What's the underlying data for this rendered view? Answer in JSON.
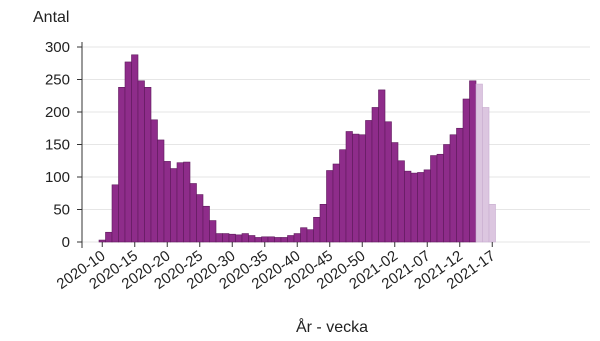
{
  "chart_data": {
    "type": "bar",
    "ylabel": "Antal",
    "xlabel": "År - vecka",
    "ylim": [
      0,
      300
    ],
    "yticks": [
      0,
      50,
      100,
      150,
      200,
      250,
      300
    ],
    "grid": "horizontal",
    "x_tick_labels": [
      "2020-10",
      "2020-15",
      "2020-20",
      "2020-25",
      "2020-30",
      "2020-35",
      "2020-40",
      "2020-45",
      "2020-50",
      "2021-02",
      "2021-07",
      "2021-12",
      "2021-17"
    ],
    "categories": [
      "2020-10",
      "2020-11",
      "2020-12",
      "2020-13",
      "2020-14",
      "2020-15",
      "2020-16",
      "2020-17",
      "2020-18",
      "2020-19",
      "2020-20",
      "2020-21",
      "2020-22",
      "2020-23",
      "2020-24",
      "2020-25",
      "2020-26",
      "2020-27",
      "2020-28",
      "2020-29",
      "2020-30",
      "2020-31",
      "2020-32",
      "2020-33",
      "2020-34",
      "2020-35",
      "2020-36",
      "2020-37",
      "2020-38",
      "2020-39",
      "2020-40",
      "2020-41",
      "2020-42",
      "2020-43",
      "2020-44",
      "2020-45",
      "2020-46",
      "2020-47",
      "2020-48",
      "2020-49",
      "2020-50",
      "2020-51",
      "2020-52",
      "2020-53",
      "2021-01",
      "2021-02",
      "2021-03",
      "2021-04",
      "2021-05",
      "2021-06",
      "2021-07",
      "2021-08",
      "2021-09",
      "2021-10",
      "2021-11",
      "2021-12",
      "2021-13",
      "2021-14",
      "2021-15",
      "2021-16",
      "2021-17"
    ],
    "values": [
      3,
      15,
      88,
      238,
      277,
      288,
      248,
      238,
      188,
      157,
      124,
      113,
      122,
      123,
      90,
      73,
      55,
      33,
      13,
      13,
      12,
      11,
      13,
      10,
      7,
      8,
      8,
      7,
      7,
      10,
      13,
      22,
      19,
      38,
      58,
      110,
      120,
      142,
      170,
      166,
      165,
      187,
      207,
      234,
      185,
      153,
      125,
      109,
      106,
      107,
      111,
      133,
      135,
      150,
      165,
      175,
      220,
      248,
      243,
      207,
      58
    ],
    "preliminary_from_index": 58,
    "colors": {
      "bar": "#8e2c8a",
      "bar_edge": "#5e1a5c",
      "bar_preliminary": "#dcc6e0",
      "bar_preliminary_edge": "#c9aed0",
      "grid": "#e6e6e6",
      "axis": "#333333"
    }
  }
}
